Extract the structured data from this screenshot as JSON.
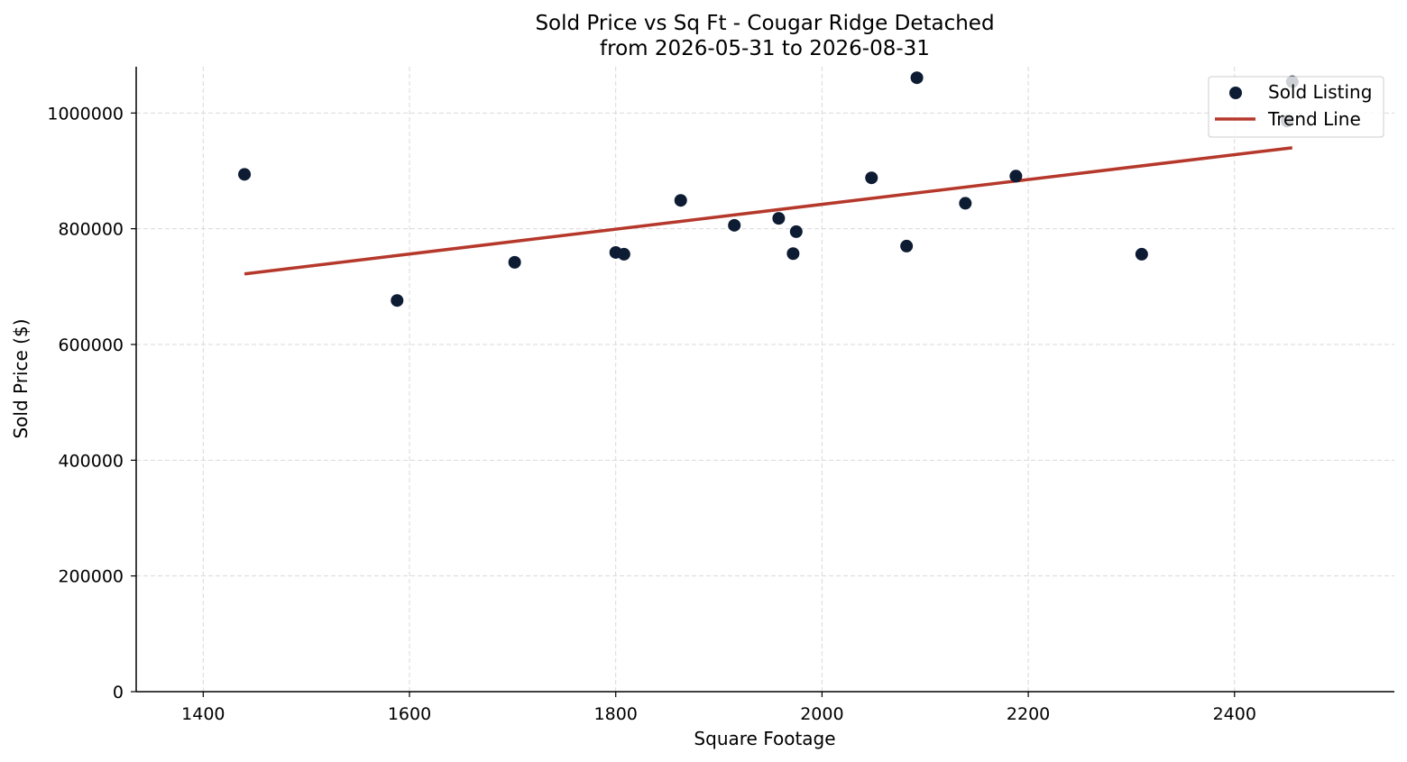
{
  "chart_data": {
    "type": "scatter",
    "title": "Sold Price vs Sq Ft - Cougar Ridge Detached",
    "subtitle": "from 2026-05-31 to 2026-08-31",
    "xlabel": "Square Footage",
    "ylabel": "Sold Price ($)",
    "xlim": [
      1335,
      2555
    ],
    "ylim": [
      0,
      1080000
    ],
    "xticks": [
      1400,
      1600,
      1800,
      2000,
      2200,
      2400
    ],
    "yticks": [
      0,
      200000,
      400000,
      600000,
      800000,
      1000000
    ],
    "grid": true,
    "legend_position": "top-right",
    "colors": {
      "points": "#0d1b33",
      "trend": "#b5382b",
      "grid": "#d9d9d9"
    },
    "series": [
      {
        "name": "Sold Listing",
        "kind": "scatter",
        "points": [
          {
            "x": 1440,
            "y": 894000
          },
          {
            "x": 1588,
            "y": 676000
          },
          {
            "x": 1702,
            "y": 742000
          },
          {
            "x": 1800,
            "y": 759000
          },
          {
            "x": 1808,
            "y": 756000
          },
          {
            "x": 1863,
            "y": 849000
          },
          {
            "x": 1915,
            "y": 806000
          },
          {
            "x": 1958,
            "y": 818000
          },
          {
            "x": 1972,
            "y": 757000
          },
          {
            "x": 1975,
            "y": 795000
          },
          {
            "x": 2048,
            "y": 888000
          },
          {
            "x": 2082,
            "y": 770000
          },
          {
            "x": 2092,
            "y": 1061000
          },
          {
            "x": 2139,
            "y": 844000
          },
          {
            "x": 2188,
            "y": 891000
          },
          {
            "x": 2310,
            "y": 756000
          },
          {
            "x": 2451,
            "y": 986000
          },
          {
            "x": 2456,
            "y": 1054000
          }
        ]
      },
      {
        "name": "Trend Line",
        "kind": "line",
        "points": [
          {
            "x": 1440,
            "y": 722000
          },
          {
            "x": 2456,
            "y": 940000
          }
        ]
      }
    ]
  }
}
